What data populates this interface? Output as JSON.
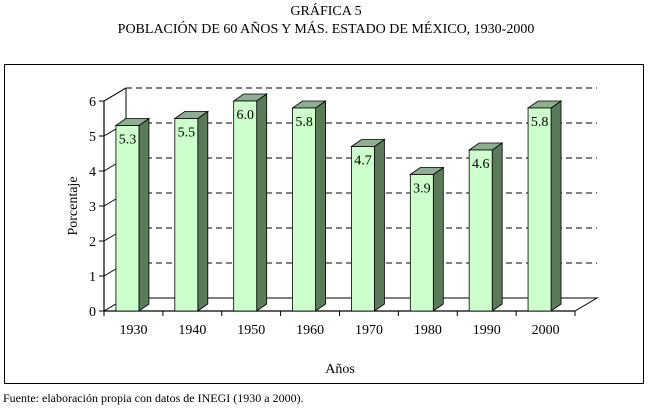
{
  "heading": {
    "line1": "GRÁFICA 5",
    "line2": "POBLACIÓN DE 60 AÑOS Y MÁS. ESTADO DE MÉXICO,  1930-2000"
  },
  "source_note": "Fuente: elaboración propia con datos de  INEGI (1930 a 2000).",
  "colors": {
    "bar_front": "#ccffcc",
    "bar_side": "#5a7a5a",
    "bar_top": "#8fae8f",
    "wall": "#ffffff",
    "gridline": "#000000"
  },
  "chart_data": {
    "type": "bar",
    "title": "",
    "xlabel": "Años",
    "ylabel": "Porcentaje",
    "ylim": [
      0,
      6
    ],
    "yticks": [
      "0",
      "1",
      "2",
      "3",
      "4",
      "5",
      "6"
    ],
    "grid": true,
    "legend": "none",
    "categories": [
      "1930",
      "1940",
      "1950",
      "1960",
      "1970",
      "1980",
      "1990",
      "2000"
    ],
    "values": [
      5.3,
      5.5,
      6.0,
      5.8,
      4.7,
      3.9,
      4.6,
      5.8
    ],
    "data_labels": [
      "5.3",
      "5.5",
      "6.0",
      "5.8",
      "4.7",
      "3.9",
      "4.6",
      "5.8"
    ]
  }
}
